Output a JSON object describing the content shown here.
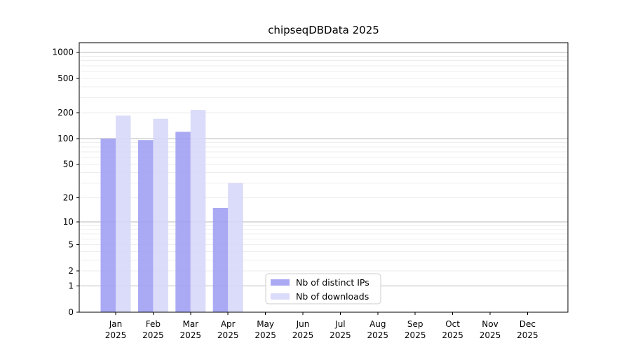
{
  "figure": {
    "background": "#ffffff"
  },
  "chart_data": {
    "type": "bar",
    "title": "chipseqDBData 2025",
    "categories": [
      "Jan 2025",
      "Feb 2025",
      "Mar 2025",
      "Apr 2025",
      "May 2025",
      "Jun 2025",
      "Jul 2025",
      "Aug 2025",
      "Sep 2025",
      "Oct 2025",
      "Nov 2025",
      "Dec 2025"
    ],
    "series": [
      {
        "name": "Nb of distinct IPs",
        "color": "#9e9ef3",
        "values": [
          100,
          96,
          120,
          15,
          0,
          0,
          0,
          0,
          0,
          0,
          0,
          0
        ]
      },
      {
        "name": "Nb of downloads",
        "color": "#d6d6f9",
        "values": [
          185,
          170,
          215,
          30,
          0,
          0,
          0,
          0,
          0,
          0,
          0,
          0
        ]
      }
    ],
    "xlabel": "",
    "ylabel": "",
    "yscale": "log10(value+1)",
    "yticks": [
      0,
      1,
      2,
      5,
      10,
      20,
      50,
      100,
      200,
      500,
      1000
    ],
    "ylim": [
      0,
      1290
    ],
    "grid": {
      "major_at": [
        1,
        10,
        100,
        1000
      ],
      "major_color": "#b8b8b8",
      "minor_color": "#ededed"
    },
    "axis_color": "#000000",
    "legend": {
      "position": "lower-center",
      "border_color": "#cccccc",
      "entries": [
        "Nb of distinct IPs",
        "Nb of downloads"
      ]
    }
  }
}
